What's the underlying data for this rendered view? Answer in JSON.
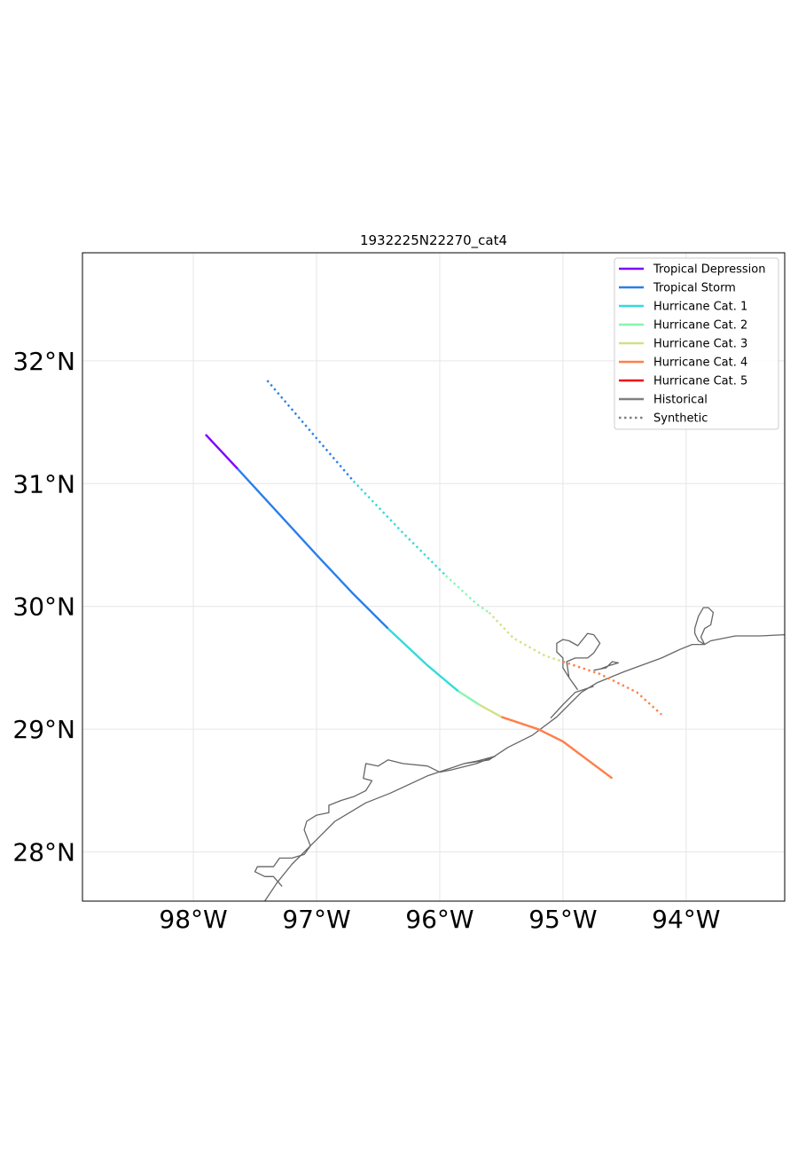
{
  "title": "1932225N22270_cat4",
  "axes": {
    "lon_range": [
      -98.9,
      -93.2
    ],
    "lat_range": [
      27.6,
      32.88
    ],
    "lon_ticks": [
      -98,
      -97,
      -96,
      -95,
      -94
    ],
    "lon_tick_labels": [
      "98°W",
      "97°W",
      "96°W",
      "95°W",
      "94°W"
    ],
    "lat_ticks": [
      28,
      29,
      30,
      31,
      32
    ],
    "lat_tick_labels": [
      "28°N",
      "29°N",
      "30°N",
      "31°N",
      "32°N"
    ],
    "grid": true
  },
  "legend": {
    "placement": "top-right",
    "entries": [
      {
        "label": "Tropical Depression",
        "color": "#7f00ff",
        "style": "solid"
      },
      {
        "label": "Tropical Storm",
        "color": "#2a7fea",
        "style": "solid"
      },
      {
        "label": "Hurricane Cat. 1",
        "color": "#33dbdb",
        "style": "solid"
      },
      {
        "label": "Hurricane Cat. 2",
        "color": "#88f5b0",
        "style": "solid"
      },
      {
        "label": "Hurricane Cat. 3",
        "color": "#d4df86",
        "style": "solid"
      },
      {
        "label": "Hurricane Cat. 4",
        "color": "#ff7f4a",
        "style": "solid"
      },
      {
        "label": "Hurricane Cat. 5",
        "color": "#ee1111",
        "style": "solid"
      },
      {
        "label": "Historical",
        "color": "#808080",
        "style": "solid"
      },
      {
        "label": "Synthetic",
        "color": "#808080",
        "style": "dotted"
      }
    ]
  },
  "tracks": [
    {
      "name": "historical",
      "style": "solid",
      "segments": [
        {
          "color": "#7f00ff",
          "points": [
            [
              -97.9,
              31.4
            ],
            [
              -97.64,
              31.12
            ]
          ]
        },
        {
          "color": "#2a7fea",
          "points": [
            [
              -97.64,
              31.12
            ],
            [
              -97.0,
              30.42
            ],
            [
              -96.7,
              30.1
            ],
            [
              -96.42,
              29.82
            ]
          ]
        },
        {
          "color": "#33dbdb",
          "points": [
            [
              -96.42,
              29.82
            ],
            [
              -96.1,
              29.52
            ],
            [
              -95.85,
              29.31
            ]
          ]
        },
        {
          "color": "#88f5b0",
          "points": [
            [
              -95.85,
              29.31
            ],
            [
              -95.68,
              29.2
            ]
          ]
        },
        {
          "color": "#d4df86",
          "points": [
            [
              -95.68,
              29.2
            ],
            [
              -95.5,
              29.1
            ]
          ]
        },
        {
          "color": "#ff7f4a",
          "points": [
            [
              -95.5,
              29.1
            ],
            [
              -95.2,
              29.0
            ],
            [
              -95.0,
              28.9
            ],
            [
              -94.6,
              28.6
            ]
          ]
        }
      ]
    },
    {
      "name": "synthetic",
      "style": "dotted",
      "segments": [
        {
          "color": "#2a7fea",
          "points": [
            [
              -97.4,
              31.84
            ],
            [
              -97.0,
              31.37
            ],
            [
              -96.7,
              31.02
            ]
          ]
        },
        {
          "color": "#33dbdb",
          "points": [
            [
              -96.7,
              31.02
            ],
            [
              -96.3,
              30.6
            ],
            [
              -95.95,
              30.25
            ]
          ]
        },
        {
          "color": "#88f5b0",
          "points": [
            [
              -95.95,
              30.25
            ],
            [
              -95.7,
              30.02
            ],
            [
              -95.6,
              29.95
            ]
          ]
        },
        {
          "color": "#d4df86",
          "points": [
            [
              -95.6,
              29.95
            ],
            [
              -95.4,
              29.74
            ],
            [
              -95.15,
              29.6
            ],
            [
              -95.0,
              29.55
            ]
          ]
        },
        {
          "color": "#ff7f4a",
          "points": [
            [
              -95.0,
              29.55
            ],
            [
              -94.7,
              29.45
            ],
            [
              -94.4,
              29.3
            ],
            [
              -94.2,
              29.12
            ]
          ]
        }
      ]
    }
  ],
  "coastline": [
    [
      [
        -97.42,
        27.6
      ],
      [
        -97.32,
        27.75
      ],
      [
        -97.2,
        27.9
      ],
      [
        -97.0,
        28.1
      ],
      [
        -96.85,
        28.25
      ],
      [
        -96.6,
        28.4
      ],
      [
        -96.4,
        28.48
      ],
      [
        -96.1,
        28.62
      ],
      [
        -95.8,
        28.72
      ],
      [
        -95.6,
        28.75
      ],
      [
        -95.45,
        28.85
      ],
      [
        -95.25,
        28.95
      ],
      [
        -95.05,
        29.1
      ],
      [
        -94.85,
        29.3
      ],
      [
        -94.72,
        29.38
      ],
      [
        -94.5,
        29.47
      ],
      [
        -94.2,
        29.58
      ],
      [
        -94.05,
        29.65
      ],
      [
        -93.95,
        29.69
      ],
      [
        -93.85,
        29.69
      ],
      [
        -93.8,
        29.72
      ],
      [
        -93.6,
        29.76
      ],
      [
        -93.4,
        29.76
      ],
      [
        -93.2,
        29.77
      ]
    ],
    [
      [
        -93.85,
        29.69
      ],
      [
        -93.88,
        29.75
      ],
      [
        -93.85,
        29.82
      ],
      [
        -93.8,
        29.85
      ],
      [
        -93.78,
        29.95
      ],
      [
        -93.82,
        29.99
      ],
      [
        -93.86,
        29.99
      ],
      [
        -93.9,
        29.92
      ],
      [
        -93.93,
        29.82
      ],
      [
        -93.93,
        29.78
      ],
      [
        -93.9,
        29.72
      ],
      [
        -93.85,
        29.69
      ]
    ],
    [
      [
        -94.88,
        29.32
      ],
      [
        -94.95,
        29.42
      ],
      [
        -94.97,
        29.55
      ],
      [
        -94.9,
        29.58
      ],
      [
        -94.8,
        29.58
      ],
      [
        -94.75,
        29.62
      ],
      [
        -94.7,
        29.7
      ],
      [
        -94.75,
        29.77
      ],
      [
        -94.8,
        29.78
      ],
      [
        -94.88,
        29.68
      ],
      [
        -94.95,
        29.72
      ],
      [
        -95.0,
        29.73
      ],
      [
        -95.05,
        29.7
      ],
      [
        -95.05,
        29.63
      ],
      [
        -95.0,
        29.58
      ],
      [
        -95.0,
        29.5
      ],
      [
        -94.95,
        29.42
      ],
      [
        -94.9,
        29.35
      ],
      [
        -94.88,
        29.32
      ]
    ],
    [
      [
        -94.75,
        29.48
      ],
      [
        -94.65,
        29.5
      ],
      [
        -94.6,
        29.55
      ],
      [
        -94.55,
        29.54
      ],
      [
        -94.62,
        29.52
      ],
      [
        -94.7,
        29.49
      ],
      [
        -94.75,
        29.48
      ]
    ],
    [
      [
        -95.1,
        29.09
      ],
      [
        -95.0,
        29.2
      ],
      [
        -94.9,
        29.3
      ],
      [
        -94.75,
        29.35
      ]
    ],
    [
      [
        -96.0,
        28.65
      ],
      [
        -96.1,
        28.7
      ],
      [
        -96.3,
        28.72
      ],
      [
        -96.42,
        28.75
      ],
      [
        -96.5,
        28.7
      ],
      [
        -96.6,
        28.72
      ],
      [
        -96.62,
        28.6
      ],
      [
        -96.55,
        28.58
      ],
      [
        -96.6,
        28.5
      ],
      [
        -96.7,
        28.45
      ],
      [
        -96.8,
        28.42
      ],
      [
        -96.9,
        28.38
      ],
      [
        -96.9,
        28.32
      ],
      [
        -97.0,
        28.3
      ],
      [
        -97.08,
        28.25
      ],
      [
        -97.1,
        28.18
      ],
      [
        -97.05,
        28.05
      ],
      [
        -97.1,
        27.98
      ],
      [
        -97.2,
        27.95
      ],
      [
        -97.3,
        27.95
      ],
      [
        -97.35,
        27.88
      ],
      [
        -97.48,
        27.88
      ],
      [
        -97.5,
        27.84
      ],
      [
        -97.42,
        27.8
      ],
      [
        -97.35,
        27.8
      ],
      [
        -97.28,
        27.72
      ]
    ],
    [
      [
        -95.8,
        28.72
      ],
      [
        -95.7,
        28.74
      ],
      [
        -95.55,
        28.78
      ],
      [
        -95.7,
        28.72
      ],
      [
        -95.9,
        28.67
      ],
      [
        -96.0,
        28.65
      ]
    ]
  ]
}
